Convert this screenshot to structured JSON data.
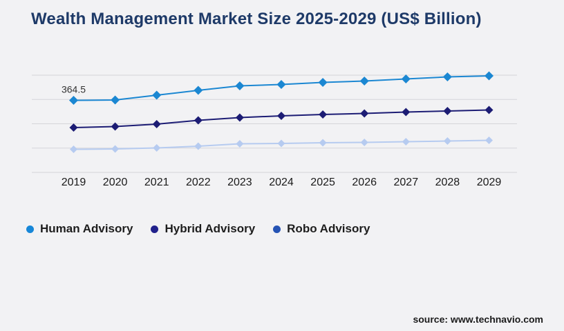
{
  "title": "Wealth Management Market Size 2025-2029 (US$ Billion)",
  "source": "source: www.technavio.com",
  "colors": {
    "background": "#f2f2f4",
    "title_text": "#1e3a68",
    "gridline": "#d4d4d9",
    "axis_label_text": "#1a1a1a",
    "legend_text": "#1d1d1d",
    "annotation_text": "#333333",
    "source_text": "#1b1b1b"
  },
  "chart_data": {
    "type": "line",
    "title": "Wealth Management Market Size 2025-2029 (US$ Billion)",
    "xlabel": "",
    "ylabel": "US$ Billion",
    "categories": [
      "2019",
      "2020",
      "2021",
      "2022",
      "2023",
      "2024",
      "2025",
      "2026",
      "2027",
      "2028",
      "2029"
    ],
    "series": [
      {
        "name": "Human Advisory",
        "color": "#1b87d2",
        "legend_dot_color": "#1787d8",
        "values": [
          364.5,
          366.2,
          390.7,
          415.1,
          437.7,
          444.7,
          455.2,
          462.2,
          472.6,
          483.1,
          488.3
        ]
      },
      {
        "name": "Hybrid Advisory",
        "color": "#1c1c74",
        "legend_dot_color": "#21218c",
        "values": [
          226.7,
          231.9,
          244.2,
          263.3,
          277.3,
          286.0,
          293.0,
          298.2,
          305.2,
          310.4,
          315.7
        ]
      },
      {
        "name": "Robo Advisory",
        "color": "#b6cbf0",
        "legend_dot_color": "#2553b4",
        "values": [
          116.8,
          118.6,
          123.8,
          132.5,
          144.8,
          146.5,
          150.0,
          151.7,
          155.2,
          158.7,
          162.2
        ]
      }
    ],
    "annotations": [
      {
        "text": "364.5",
        "series": "Human Advisory",
        "category": "2019"
      }
    ],
    "legend_position": "bottom-left",
    "grid": "horizontal",
    "marker": "diamond",
    "ylim": [
      0,
      500
    ]
  }
}
